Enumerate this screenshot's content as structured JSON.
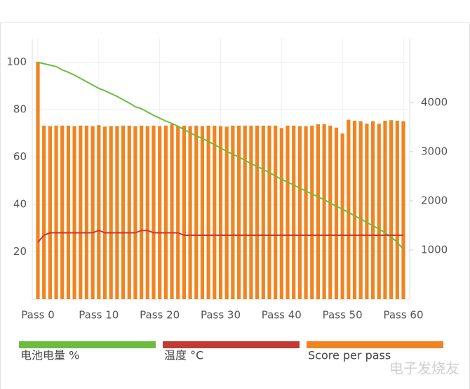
{
  "chart_data": {
    "type": "combo",
    "categories": [
      "Pass 0",
      null,
      null,
      null,
      null,
      null,
      null,
      null,
      null,
      null,
      "Pass 10",
      null,
      null,
      null,
      null,
      null,
      null,
      null,
      null,
      null,
      "Pass 20",
      null,
      null,
      null,
      null,
      null,
      null,
      null,
      null,
      null,
      "Pass 30",
      null,
      null,
      null,
      null,
      null,
      null,
      null,
      null,
      null,
      "Pass 40",
      null,
      null,
      null,
      null,
      null,
      null,
      null,
      null,
      null,
      "Pass 50",
      null,
      null,
      null,
      null,
      null,
      null,
      null,
      null,
      null,
      "Pass 60"
    ],
    "ylim": [
      0,
      110
    ],
    "yticks": [
      20,
      40,
      60,
      80,
      100
    ],
    "y2lim": [
      0,
      5300
    ],
    "y2ticks": [
      1000,
      2000,
      3000,
      4000
    ],
    "grid": true,
    "series": [
      {
        "name": "电池电量 %",
        "type": "line",
        "color": "#6cbd3e",
        "values": [
          100,
          99.4,
          98.8,
          98.2,
          96.8,
          95.8,
          94.6,
          93.2,
          91.8,
          90.4,
          89,
          88,
          86.8,
          85.6,
          84.2,
          82.8,
          81.2,
          80.4,
          79,
          77.6,
          76.4,
          75.2,
          74.2,
          73,
          71.6,
          70.2,
          69,
          67.8,
          66.6,
          65.2,
          63.8,
          62.4,
          61.2,
          60,
          58.6,
          57.2,
          56,
          54.8,
          53.4,
          52,
          50.6,
          49.4,
          48.2,
          46.8,
          45.6,
          44.4,
          43.2,
          42,
          40.6,
          39.2,
          38,
          36.6,
          35.2,
          33.8,
          32.4,
          31,
          29.6,
          28,
          26.2,
          24,
          21
        ]
      },
      {
        "name": "温度 °C",
        "type": "line",
        "color": "#c33a35",
        "values": [
          24,
          27,
          28,
          28,
          28,
          28,
          28,
          28,
          28,
          28,
          29,
          28,
          28,
          28,
          28,
          28,
          28,
          29,
          29,
          28,
          28,
          28,
          28,
          28,
          27,
          27,
          27,
          27,
          27,
          27,
          27,
          27,
          27,
          27,
          27,
          27,
          27,
          27,
          27,
          27,
          27,
          27,
          27,
          27,
          27,
          27,
          27,
          27,
          27,
          27,
          27,
          27,
          27,
          27,
          27,
          27,
          27,
          27,
          27,
          27,
          27
        ]
      },
      {
        "name": "Score per pass",
        "type": "bar",
        "axis": "y2",
        "color": "#f08421",
        "values": [
          4830,
          3530,
          3520,
          3530,
          3530,
          3530,
          3520,
          3530,
          3530,
          3520,
          3540,
          3510,
          3520,
          3520,
          3530,
          3530,
          3520,
          3530,
          3520,
          3530,
          3520,
          3530,
          3560,
          3520,
          3530,
          3520,
          3530,
          3520,
          3530,
          3530,
          3520,
          3510,
          3530,
          3530,
          3530,
          3530,
          3530,
          3530,
          3530,
          3530,
          3480,
          3530,
          3530,
          3520,
          3520,
          3530,
          3560,
          3560,
          3530,
          3490,
          3370,
          3650,
          3630,
          3620,
          3570,
          3620,
          3570,
          3630,
          3640,
          3630,
          3620
        ]
      }
    ],
    "watermark": "电子发烧友"
  }
}
